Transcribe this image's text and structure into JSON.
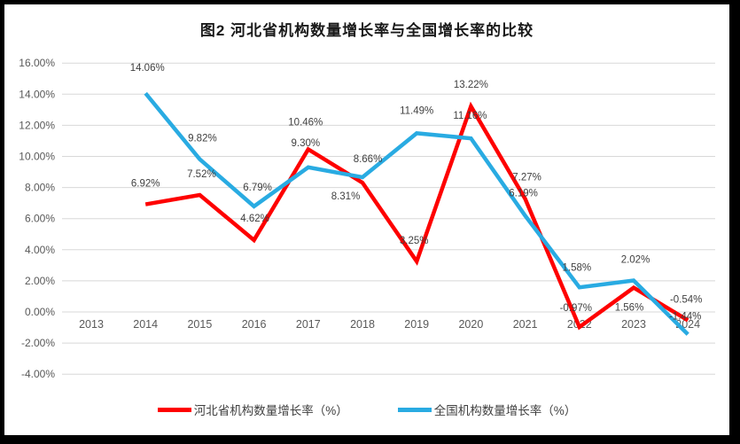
{
  "chart_data": {
    "type": "line",
    "title": "图2 河北省机构数量增长率与全国增长率的比较",
    "categories": [
      "2013",
      "2014",
      "2015",
      "2016",
      "2017",
      "2018",
      "2019",
      "2020",
      "2021",
      "2022",
      "2023",
      "2024"
    ],
    "series": [
      {
        "name": "河北省机构数量增长率（%）",
        "color": "#FE0000",
        "values": [
          null,
          6.92,
          7.52,
          4.62,
          10.46,
          8.31,
          3.25,
          13.22,
          7.27,
          -0.97,
          1.56,
          -0.54
        ]
      },
      {
        "name": "全国机构数量增长率（%）",
        "color": "#29ABE2",
        "values": [
          null,
          14.06,
          9.82,
          6.79,
          9.3,
          8.66,
          11.49,
          11.16,
          6.19,
          1.58,
          2.02,
          -1.44
        ]
      }
    ],
    "ylim": [
      -4,
      16
    ],
    "ytick_step": 2,
    "ytick_labels": [
      "16.00%",
      "14.00%",
      "12.00%",
      "10.00%",
      "8.00%",
      "6.00%",
      "4.00%",
      "2.00%",
      "0.00%",
      "-2.00%",
      "-4.00%"
    ],
    "grid": true,
    "data_labels": true,
    "legend_position": "bottom",
    "label_offsets": [
      [
        null,
        [
          0,
          -24
        ],
        [
          2,
          -24
        ],
        [
          1,
          -25
        ],
        [
          -3,
          -31
        ],
        [
          -19,
          15
        ],
        [
          -3,
          -24
        ],
        [
          0,
          -25
        ],
        [
          2,
          -25
        ],
        [
          -4,
          -22
        ],
        [
          -5,
          22
        ],
        [
          -2,
          -24
        ]
      ],
      [
        null,
        [
          2,
          -29
        ],
        [
          3,
          -24
        ],
        [
          4,
          -22
        ],
        [
          -3,
          -28
        ],
        [
          6,
          -21
        ],
        [
          0,
          -26
        ],
        [
          -1,
          -26
        ],
        [
          -2,
          -26
        ],
        [
          -3,
          -23
        ],
        [
          2,
          -24
        ],
        [
          -3,
          -21
        ]
      ]
    ]
  },
  "colors": {
    "frame": "#000000",
    "background": "#FFFFFF",
    "gridline": "#D8D8D8",
    "tick_text": "#595959",
    "data_label_text": "#3F3F3F",
    "title_text": "#1A1A1A",
    "legend_text": "#404040"
  }
}
